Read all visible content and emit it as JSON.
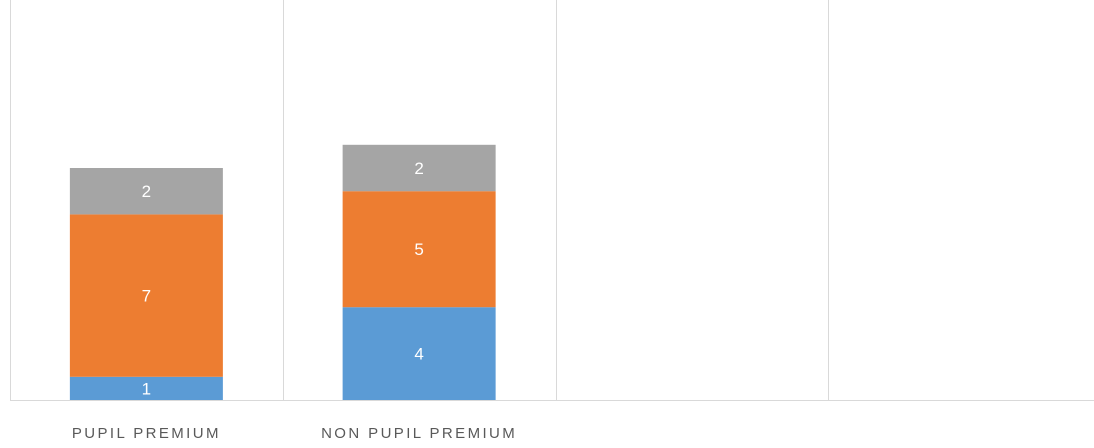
{
  "chart_data": {
    "type": "bar",
    "stacked": true,
    "categories": [
      "PUPIL PREMIUM",
      "NON PUPIL PREMIUM",
      "",
      ""
    ],
    "series": [
      {
        "values": [
          1,
          4,
          null,
          null
        ],
        "color": "#5b9bd5"
      },
      {
        "values": [
          7,
          5,
          null,
          null
        ],
        "color": "#ed7d31"
      },
      {
        "values": [
          2,
          2,
          null,
          null
        ],
        "color": "#a5a5a5"
      }
    ],
    "ylim": [
      0,
      12
    ],
    "grid": "vertical category dividers",
    "legend": "none",
    "data_labels": true
  }
}
